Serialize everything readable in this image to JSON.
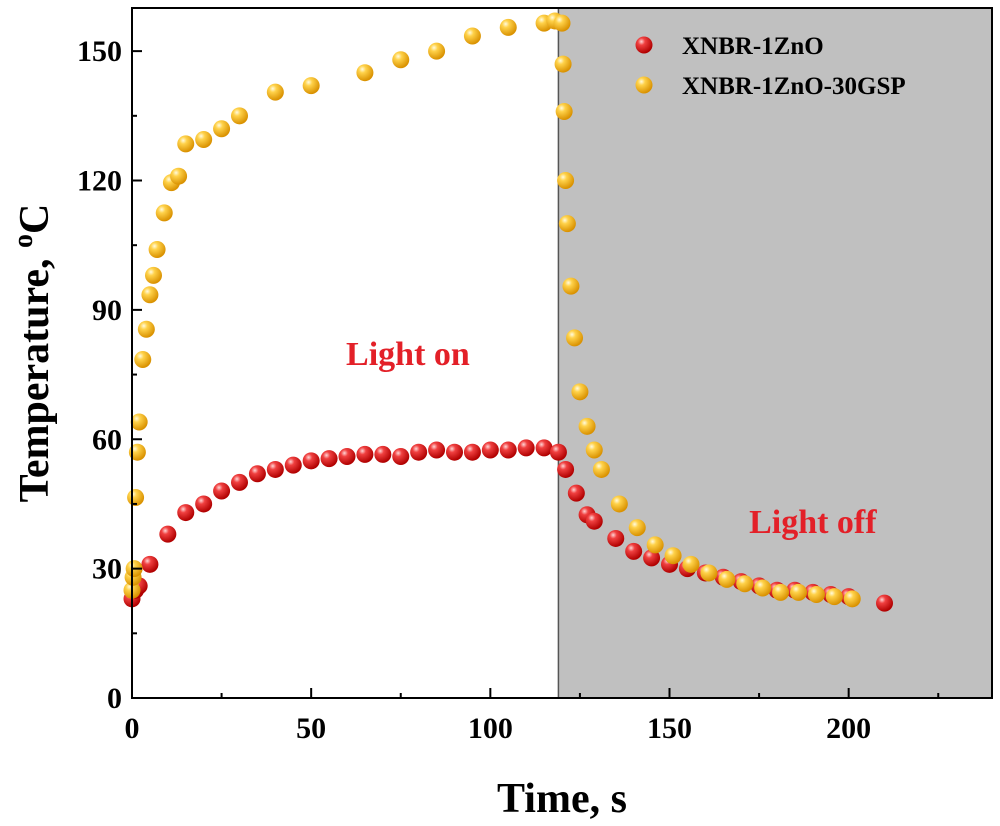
{
  "colors": {
    "series_red": "#e31a1c",
    "series_yellow": "#ffc000",
    "annotation": "#e32028",
    "shade": "#c0c0c0"
  },
  "chart_data": {
    "type": "scatter",
    "title": "",
    "xlabel": "Time, s",
    "ylabel_main": "Temperature, ",
    "ylabel_sup": "o",
    "ylabel_unit": "C",
    "xlim": [
      0,
      240
    ],
    "ylim": [
      0,
      160
    ],
    "xticks": [
      0,
      50,
      100,
      150,
      200
    ],
    "yticks": [
      0,
      30,
      60,
      90,
      120,
      150
    ],
    "legend_position": "top-right",
    "shaded_region": {
      "x_start": 119,
      "x_end": 240,
      "meaning": "light off"
    },
    "annotations": [
      {
        "text": "Light on",
        "x": 77,
        "y": 80
      },
      {
        "text": "Light off",
        "x": 190,
        "y": 41
      }
    ],
    "series": [
      {
        "name": "XNBR-1ZnO",
        "color": "#e31a1c",
        "points": [
          [
            0,
            23
          ],
          [
            1,
            25
          ],
          [
            2,
            26
          ],
          [
            5,
            31
          ],
          [
            10,
            38
          ],
          [
            15,
            43
          ],
          [
            20,
            45
          ],
          [
            25,
            48
          ],
          [
            30,
            50
          ],
          [
            35,
            52
          ],
          [
            40,
            53
          ],
          [
            45,
            54
          ],
          [
            50,
            55
          ],
          [
            55,
            55.5
          ],
          [
            60,
            56
          ],
          [
            65,
            56.5
          ],
          [
            70,
            56.5
          ],
          [
            75,
            56
          ],
          [
            80,
            57
          ],
          [
            85,
            57.5
          ],
          [
            90,
            57
          ],
          [
            95,
            57
          ],
          [
            100,
            57.5
          ],
          [
            105,
            57.5
          ],
          [
            110,
            58
          ],
          [
            115,
            58
          ],
          [
            119,
            57
          ],
          [
            121,
            53
          ],
          [
            124,
            47.5
          ],
          [
            127,
            42.5
          ],
          [
            129,
            41
          ],
          [
            135,
            37
          ],
          [
            140,
            34
          ],
          [
            145,
            32.5
          ],
          [
            150,
            31
          ],
          [
            155,
            30
          ],
          [
            160,
            29
          ],
          [
            165,
            28
          ],
          [
            170,
            27
          ],
          [
            175,
            26
          ],
          [
            180,
            25
          ],
          [
            185,
            25
          ],
          [
            190,
            24.5
          ],
          [
            195,
            24
          ],
          [
            200,
            23.5
          ],
          [
            210,
            22
          ]
        ]
      },
      {
        "name": "XNBR-1ZnO-30GSP",
        "color": "#ffc000",
        "points": [
          [
            0,
            25
          ],
          [
            0.3,
            28
          ],
          [
            0.6,
            30
          ],
          [
            1,
            46.5
          ],
          [
            1.5,
            57
          ],
          [
            2,
            64
          ],
          [
            3,
            78.5
          ],
          [
            4,
            85.5
          ],
          [
            5,
            93.5
          ],
          [
            6,
            98
          ],
          [
            7,
            104
          ],
          [
            9,
            112.5
          ],
          [
            11,
            119.5
          ],
          [
            13,
            121
          ],
          [
            15,
            128.5
          ],
          [
            20,
            129.5
          ],
          [
            25,
            132
          ],
          [
            30,
            135
          ],
          [
            40,
            140.5
          ],
          [
            50,
            142
          ],
          [
            65,
            145
          ],
          [
            75,
            148
          ],
          [
            85,
            150
          ],
          [
            95,
            153.5
          ],
          [
            105,
            155.5
          ],
          [
            115,
            156.5
          ],
          [
            118,
            157
          ],
          [
            120,
            156.5
          ],
          [
            120.3,
            147
          ],
          [
            120.6,
            136
          ],
          [
            121,
            120
          ],
          [
            121.5,
            110
          ],
          [
            122.5,
            95.5
          ],
          [
            123.5,
            83.5
          ],
          [
            125,
            71
          ],
          [
            127,
            63
          ],
          [
            129,
            57.5
          ],
          [
            131,
            53
          ],
          [
            136,
            45
          ],
          [
            141,
            39.5
          ],
          [
            146,
            35.5
          ],
          [
            151,
            33
          ],
          [
            156,
            31
          ],
          [
            161,
            29
          ],
          [
            166,
            27.5
          ],
          [
            171,
            26.5
          ],
          [
            176,
            25.5
          ],
          [
            181,
            24.5
          ],
          [
            186,
            24.5
          ],
          [
            191,
            24
          ],
          [
            196,
            23.5
          ],
          [
            201,
            23
          ]
        ]
      }
    ]
  }
}
